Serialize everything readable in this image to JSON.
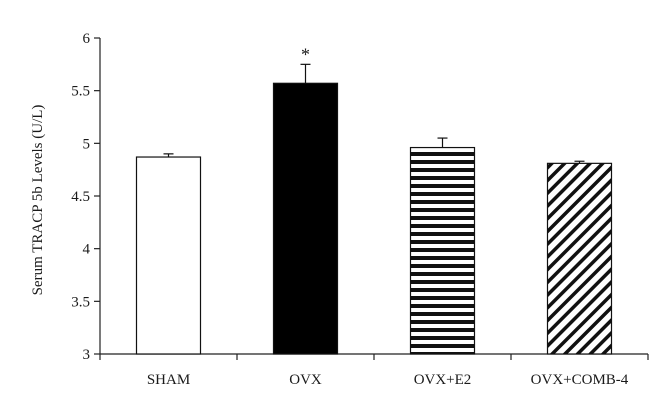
{
  "chart_data": {
    "type": "bar",
    "title": "",
    "xlabel": "",
    "ylabel": "Serum TRACP 5b Levels (U/L)",
    "ylim": [
      3,
      6
    ],
    "yticks": [
      "3",
      "3.5",
      "4",
      "4.5",
      "5",
      "5.5",
      "6"
    ],
    "yticks_values": [
      3,
      3.5,
      4,
      4.5,
      5,
      5.5,
      6
    ],
    "grid": false,
    "legend": "none",
    "categories": [
      "SHAM",
      "OVX",
      "OVX+E2",
      "OVX+COMB-4"
    ],
    "values": [
      4.87,
      5.57,
      4.96,
      4.81
    ],
    "errors": [
      0.03,
      0.18,
      0.09,
      0.02
    ],
    "fills": [
      "white",
      "solid-black",
      "horizontal-stripes",
      "diagonal-stripes"
    ],
    "annotations": [
      {
        "category_index": 1,
        "text": "*"
      }
    ]
  }
}
